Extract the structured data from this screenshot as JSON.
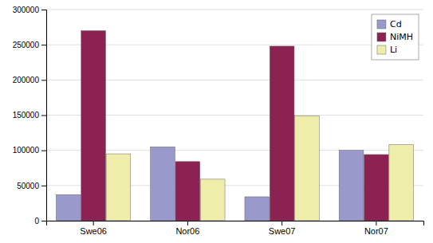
{
  "chart_data": {
    "type": "bar",
    "categories": [
      "Swe06",
      "Nor06",
      "Swe07",
      "Nor07"
    ],
    "series": [
      {
        "name": "Cd",
        "color": "#9999cc",
        "values": [
          37000,
          105000,
          34000,
          100000
        ]
      },
      {
        "name": "NiMH",
        "color": "#8B2252",
        "values": [
          270000,
          84000,
          248000,
          94000
        ]
      },
      {
        "name": "Li",
        "color": "#eeeeaa",
        "values": [
          95000,
          59000,
          149000,
          108000
        ]
      }
    ],
    "ylim": [
      0,
      300000
    ],
    "yticks": [
      0,
      50000,
      100000,
      150000,
      200000,
      250000,
      300000
    ],
    "grid": true,
    "legend": "upper right"
  }
}
